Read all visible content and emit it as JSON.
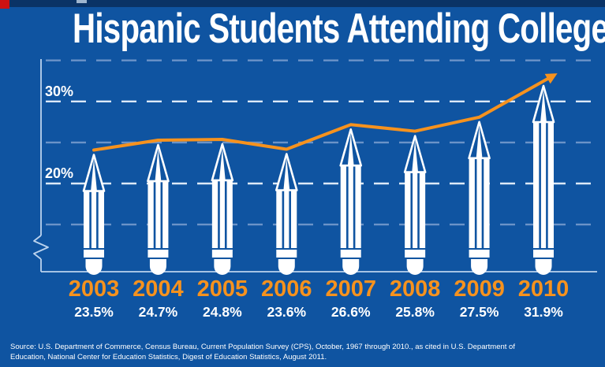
{
  "page": {
    "title": "Hispanic Students Attending College"
  },
  "source": {
    "line1": "Source: U.S. Department of Commerce, Census Bureau, Current Population Survey (CPS), October, 1967 through 2010., as cited in U.S. Department of",
    "line2": "Education, National Center for Education Statistics, Digest of Education Statistics, August 2011."
  },
  "colors": {
    "background": "#0F54A1",
    "top_strip": "#0A3366",
    "corner_mark_red": "#CE1212",
    "accent_orange": "#F6921E",
    "grid_major": "#DCE9F8",
    "grid_minor": "#6B93C8",
    "axis": "#BBD3EE",
    "pencil_white": "#FFFFFF"
  },
  "chart_data": {
    "type": "bar",
    "variant": "pictogram-pencil-bars-with-trend-line",
    "title": "Hispanic Students Attending College",
    "categories": [
      "2003",
      "2004",
      "2005",
      "2006",
      "2007",
      "2008",
      "2009",
      "2010"
    ],
    "values": [
      23.5,
      24.7,
      24.8,
      23.6,
      26.6,
      25.8,
      27.5,
      31.9
    ],
    "value_labels": [
      "23.5%",
      "24.7%",
      "24.8%",
      "23.6%",
      "26.6%",
      "25.8%",
      "27.5%",
      "31.9%"
    ],
    "unit": "%",
    "xlabel": "",
    "ylabel": "",
    "y_ticks": [
      {
        "value": 30,
        "label": "30%"
      },
      {
        "value": 20,
        "label": "20%"
      }
    ],
    "gridline_values": [
      35,
      30,
      25,
      20,
      15
    ],
    "major_gridlines": [
      30,
      20
    ],
    "ylim_visible": [
      9.2,
      35
    ],
    "axis_break": true,
    "grid": "dashed-horizontal",
    "legend": "none",
    "trend_line": {
      "follows": "values",
      "arrow_end": true
    }
  }
}
